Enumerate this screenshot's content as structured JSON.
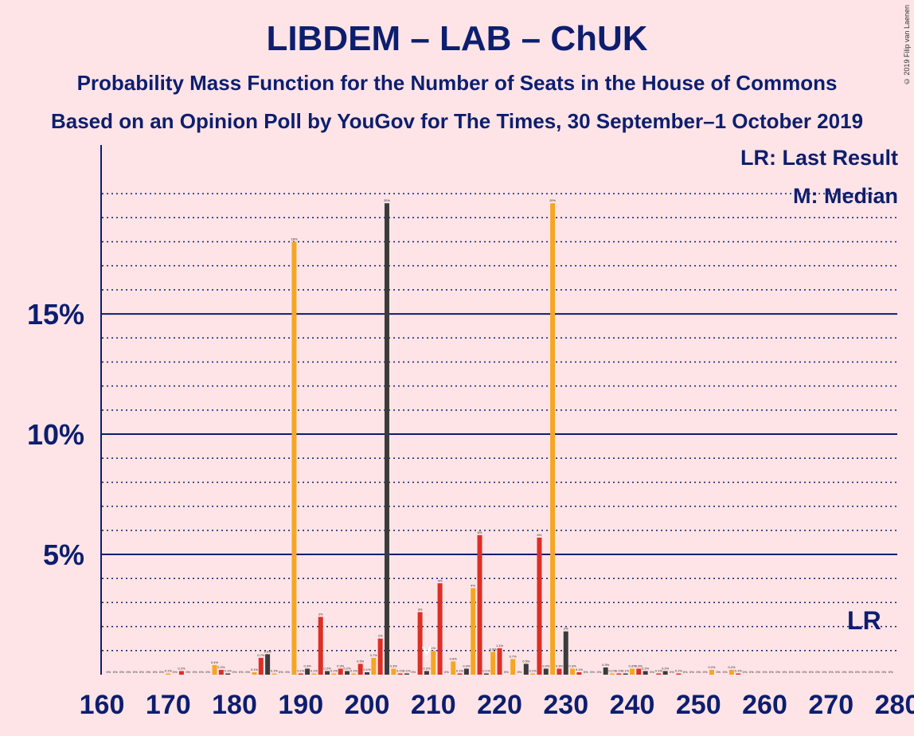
{
  "title": "LIBDEM – LAB – ChUK",
  "subtitle": "Probability Mass Function for the Number of Seats in the House of Commons",
  "subtitle2": "Based on an Opinion Poll by YouGov for The Times, 30 September–1 October 2019",
  "copyright": "© 2019 Filip van Laenen",
  "legend": {
    "last_result": "LR: Last Result",
    "median": "M: Median"
  },
  "colors": {
    "orange": "#f5a623",
    "red": "#dc2f26",
    "dark": "#3b3b3b",
    "axis": "#0d1e6e",
    "background": "#ffe4e7"
  },
  "chart_data": {
    "type": "bar",
    "x_range": [
      160,
      280
    ],
    "x_ticks": [
      160,
      170,
      180,
      190,
      200,
      210,
      220,
      230,
      240,
      250,
      260,
      270,
      280
    ],
    "y_range": [
      0,
      20.5
    ],
    "y_ticks": [
      {
        "value": 5,
        "label": "5%"
      },
      {
        "value": 10,
        "label": "10%"
      },
      {
        "value": 15,
        "label": "15%"
      }
    ],
    "gridlines_minor_step": 1,
    "last_result": {
      "seat": 275,
      "label": "LR"
    },
    "median": {
      "seat": 209,
      "label": "M"
    },
    "bars": [
      {
        "x": 161,
        "v": 0.0,
        "c": "o",
        "l": "0%"
      },
      {
        "x": 162,
        "v": 0.0,
        "c": "r",
        "l": "0%"
      },
      {
        "x": 163,
        "v": 0.0,
        "c": "d",
        "l": "0%"
      },
      {
        "x": 164,
        "v": 0.0,
        "c": "o",
        "l": "0%"
      },
      {
        "x": 165,
        "v": 0.0,
        "c": "r",
        "l": "0%"
      },
      {
        "x": 166,
        "v": 0.0,
        "c": "d",
        "l": "0%"
      },
      {
        "x": 167,
        "v": 0.0,
        "c": "o",
        "l": "0%"
      },
      {
        "x": 168,
        "v": 0.0,
        "c": "r",
        "l": "0%"
      },
      {
        "x": 169,
        "v": 0.0,
        "c": "d",
        "l": "0%"
      },
      {
        "x": 170,
        "v": 0.05,
        "c": "o",
        "l": "0.1%"
      },
      {
        "x": 171,
        "v": 0.0,
        "c": "d",
        "l": "0%"
      },
      {
        "x": 172,
        "v": 0.15,
        "c": "r",
        "l": "0.2%"
      },
      {
        "x": 173,
        "v": 0.0,
        "c": "o",
        "l": "0%"
      },
      {
        "x": 174,
        "v": 0.0,
        "c": "d",
        "l": "0%"
      },
      {
        "x": 175,
        "v": 0.0,
        "c": "r",
        "l": "0%"
      },
      {
        "x": 176,
        "v": 0.0,
        "c": "d",
        "l": "0%"
      },
      {
        "x": 177,
        "v": 0.4,
        "c": "o",
        "l": "0.4%"
      },
      {
        "x": 178,
        "v": 0.2,
        "c": "r",
        "l": "0.2%"
      },
      {
        "x": 179,
        "v": 0.05,
        "c": "d",
        "l": "0.1%"
      },
      {
        "x": 180,
        "v": 0.0,
        "c": "o",
        "l": "0%"
      },
      {
        "x": 181,
        "v": 0.0,
        "c": "d",
        "l": "0%"
      },
      {
        "x": 182,
        "v": 0.0,
        "c": "r",
        "l": "0%"
      },
      {
        "x": 183,
        "v": 0.1,
        "c": "o",
        "l": "0.1%"
      },
      {
        "x": 184,
        "v": 0.7,
        "c": "r",
        "l": "0.7%"
      },
      {
        "x": 185,
        "v": 0.85,
        "c": "d",
        "l": "0.9%"
      },
      {
        "x": 186,
        "v": 0.05,
        "c": "o",
        "l": "0.1%"
      },
      {
        "x": 187,
        "v": 0.0,
        "c": "d",
        "l": "0%"
      },
      {
        "x": 188,
        "v": 0.0,
        "c": "r",
        "l": "0%"
      },
      {
        "x": 189,
        "v": 18.0,
        "c": "o",
        "l": "18%"
      },
      {
        "x": 190,
        "v": 0.05,
        "c": "r",
        "l": "0.1%"
      },
      {
        "x": 191,
        "v": 0.25,
        "c": "d",
        "l": "0.3%"
      },
      {
        "x": 192,
        "v": 0.05,
        "c": "o",
        "l": "0.1%"
      },
      {
        "x": 193,
        "v": 2.4,
        "c": "r",
        "l": "2%"
      },
      {
        "x": 194,
        "v": 0.15,
        "c": "d",
        "l": "0.2%"
      },
      {
        "x": 195,
        "v": 0.05,
        "c": "o",
        "l": "0.1%"
      },
      {
        "x": 196,
        "v": 0.25,
        "c": "r",
        "l": "0.3%"
      },
      {
        "x": 197,
        "v": 0.15,
        "c": "d",
        "l": "0.2%"
      },
      {
        "x": 198,
        "v": 0.05,
        "c": "o",
        "l": "0.1%"
      },
      {
        "x": 199,
        "v": 0.45,
        "c": "r",
        "l": "0.5%"
      },
      {
        "x": 200,
        "v": 0.1,
        "c": "d",
        "l": "0.1%"
      },
      {
        "x": 201,
        "v": 0.7,
        "c": "o",
        "l": "0.7%"
      },
      {
        "x": 202,
        "v": 1.5,
        "c": "r",
        "l": "2%"
      },
      {
        "x": 203,
        "v": 19.6,
        "c": "d",
        "l": "20%"
      },
      {
        "x": 204,
        "v": 0.25,
        "c": "o",
        "l": "0.3%"
      },
      {
        "x": 205,
        "v": 0.05,
        "c": "r",
        "l": "0.1%"
      },
      {
        "x": 206,
        "v": 0.05,
        "c": "d",
        "l": "0.1%"
      },
      {
        "x": 207,
        "v": 0.0,
        "c": "o",
        "l": "0%"
      },
      {
        "x": 208,
        "v": 2.6,
        "c": "r",
        "l": "3%"
      },
      {
        "x": 209,
        "v": 0.15,
        "c": "d",
        "l": "0.2%"
      },
      {
        "x": 210,
        "v": 1.0,
        "c": "o",
        "l": "1%"
      },
      {
        "x": 211,
        "v": 3.8,
        "c": "r",
        "l": "4%"
      },
      {
        "x": 212,
        "v": 0.0,
        "c": "d",
        "l": "0%"
      },
      {
        "x": 213,
        "v": 0.55,
        "c": "o",
        "l": "0.6%"
      },
      {
        "x": 214,
        "v": 0.05,
        "c": "r",
        "l": "0.1%"
      },
      {
        "x": 215,
        "v": 0.25,
        "c": "d",
        "l": "0.3%"
      },
      {
        "x": 216,
        "v": 3.6,
        "c": "o",
        "l": "4%"
      },
      {
        "x": 217,
        "v": 5.8,
        "c": "r",
        "l": "6%"
      },
      {
        "x": 218,
        "v": 0.05,
        "c": "d",
        "l": "0.1%"
      },
      {
        "x": 219,
        "v": 0.95,
        "c": "o",
        "l": "0.9%"
      },
      {
        "x": 220,
        "v": 1.1,
        "c": "r",
        "l": "1.1%"
      },
      {
        "x": 221,
        "v": 0.0,
        "c": "d",
        "l": "0%"
      },
      {
        "x": 222,
        "v": 0.65,
        "c": "o",
        "l": "0.7%"
      },
      {
        "x": 223,
        "v": 0.0,
        "c": "r",
        "l": "0%"
      },
      {
        "x": 224,
        "v": 0.45,
        "c": "d",
        "l": "0.5%"
      },
      {
        "x": 225,
        "v": 0.05,
        "c": "o",
        "l": "0.1%"
      },
      {
        "x": 226,
        "v": 5.7,
        "c": "r",
        "l": "6%"
      },
      {
        "x": 227,
        "v": 0.25,
        "c": "d",
        "l": "0.3%"
      },
      {
        "x": 228,
        "v": 19.6,
        "c": "o",
        "l": "20%"
      },
      {
        "x": 229,
        "v": 0.25,
        "c": "r",
        "l": "0.3%"
      },
      {
        "x": 230,
        "v": 1.8,
        "c": "d",
        "l": "2%"
      },
      {
        "x": 231,
        "v": 0.25,
        "c": "o",
        "l": "0.3%"
      },
      {
        "x": 232,
        "v": 0.1,
        "c": "r",
        "l": "0.1%"
      },
      {
        "x": 233,
        "v": 0.0,
        "c": "d",
        "l": "0%"
      },
      {
        "x": 234,
        "v": 0.0,
        "c": "o",
        "l": "0%"
      },
      {
        "x": 235,
        "v": 0.0,
        "c": "r",
        "l": "0%"
      },
      {
        "x": 236,
        "v": 0.3,
        "c": "d",
        "l": "0.3%"
      },
      {
        "x": 237,
        "v": 0.05,
        "c": "o",
        "l": "0.1%"
      },
      {
        "x": 238,
        "v": 0.05,
        "c": "r",
        "l": "0.1%"
      },
      {
        "x": 239,
        "v": 0.05,
        "c": "d",
        "l": "0.1%"
      },
      {
        "x": 240,
        "v": 0.25,
        "c": "o",
        "l": "0.3%"
      },
      {
        "x": 241,
        "v": 0.25,
        "c": "r",
        "l": "0.3%"
      },
      {
        "x": 242,
        "v": 0.15,
        "c": "d",
        "l": "0.2%"
      },
      {
        "x": 243,
        "v": 0.0,
        "c": "o",
        "l": "0%"
      },
      {
        "x": 244,
        "v": 0.05,
        "c": "r",
        "l": "0.1%"
      },
      {
        "x": 245,
        "v": 0.15,
        "c": "d",
        "l": "0.2%"
      },
      {
        "x": 246,
        "v": 0.0,
        "c": "o",
        "l": "0%"
      },
      {
        "x": 247,
        "v": 0.05,
        "c": "r",
        "l": "0.1%"
      },
      {
        "x": 248,
        "v": 0.0,
        "c": "d",
        "l": "0%"
      },
      {
        "x": 249,
        "v": 0.0,
        "c": "o",
        "l": "0%"
      },
      {
        "x": 250,
        "v": 0.0,
        "c": "r",
        "l": "0%"
      },
      {
        "x": 251,
        "v": 0.0,
        "c": "d",
        "l": "0%"
      },
      {
        "x": 252,
        "v": 0.2,
        "c": "o",
        "l": "0.2%"
      },
      {
        "x": 253,
        "v": 0.0,
        "c": "r",
        "l": "0%"
      },
      {
        "x": 254,
        "v": 0.0,
        "c": "d",
        "l": "0%"
      },
      {
        "x": 255,
        "v": 0.2,
        "c": "o",
        "l": "0.2%"
      },
      {
        "x": 256,
        "v": 0.05,
        "c": "r",
        "l": "0.1%"
      },
      {
        "x": 257,
        "v": 0.0,
        "c": "d",
        "l": "0%"
      },
      {
        "x": 258,
        "v": 0.0,
        "c": "o",
        "l": "0%"
      },
      {
        "x": 259,
        "v": 0.0,
        "c": "r",
        "l": "0%"
      },
      {
        "x": 260,
        "v": 0.0,
        "c": "d",
        "l": "0%"
      },
      {
        "x": 261,
        "v": 0.0,
        "c": "o",
        "l": "0%"
      },
      {
        "x": 262,
        "v": 0.0,
        "c": "r",
        "l": "0%"
      },
      {
        "x": 263,
        "v": 0.0,
        "c": "d",
        "l": "0%"
      },
      {
        "x": 264,
        "v": 0.0,
        "c": "o",
        "l": "0%"
      },
      {
        "x": 265,
        "v": 0.0,
        "c": "r",
        "l": "0%"
      },
      {
        "x": 266,
        "v": 0.0,
        "c": "d",
        "l": "0%"
      },
      {
        "x": 267,
        "v": 0.0,
        "c": "o",
        "l": "0%"
      },
      {
        "x": 268,
        "v": 0.0,
        "c": "r",
        "l": "0%"
      },
      {
        "x": 269,
        "v": 0.0,
        "c": "d",
        "l": "0%"
      },
      {
        "x": 270,
        "v": 0.0,
        "c": "o",
        "l": "0%"
      },
      {
        "x": 271,
        "v": 0.0,
        "c": "r",
        "l": "0%"
      },
      {
        "x": 272,
        "v": 0.0,
        "c": "d",
        "l": "0%"
      },
      {
        "x": 273,
        "v": 0.0,
        "c": "o",
        "l": "0%"
      },
      {
        "x": 274,
        "v": 0.0,
        "c": "r",
        "l": "0%"
      },
      {
        "x": 275,
        "v": 0.0,
        "c": "d",
        "l": "0%"
      },
      {
        "x": 276,
        "v": 0.0,
        "c": "o",
        "l": "0%"
      },
      {
        "x": 277,
        "v": 0.0,
        "c": "r",
        "l": "0%"
      },
      {
        "x": 278,
        "v": 0.0,
        "c": "d",
        "l": "0%"
      },
      {
        "x": 279,
        "v": 0.0,
        "c": "o",
        "l": "0%"
      }
    ]
  }
}
